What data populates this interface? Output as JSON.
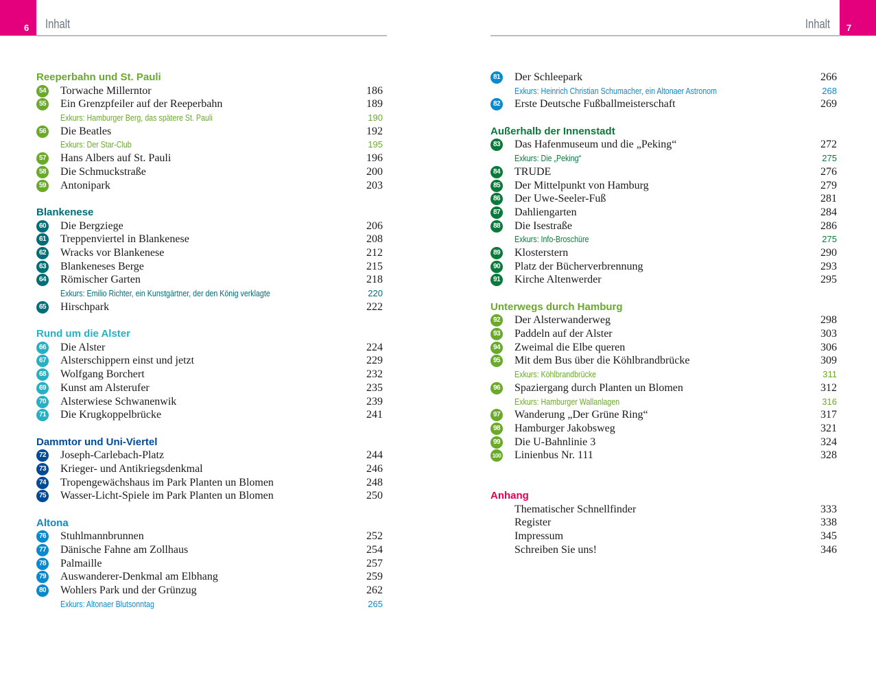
{
  "header": {
    "left_page": "6",
    "right_page": "7",
    "running_title": "Inhalt"
  },
  "colors": {
    "tab": "#e4007c"
  },
  "left": [
    {
      "title": "Reeperbahn und St. Pauli",
      "color": "#6aaa2a",
      "rows": [
        {
          "n": "54",
          "t": "Torwache Millerntor",
          "p": "186"
        },
        {
          "n": "55",
          "t": "Ein Grenzpfeiler auf der Reeperbahn",
          "p": "189"
        },
        {
          "ex": true,
          "t": "Exkurs: Hamburger Berg, das spätere St. Pauli",
          "p": "190"
        },
        {
          "n": "56",
          "t": "Die Beatles",
          "p": "192"
        },
        {
          "ex": true,
          "t": "Exkurs: Der Star-Club",
          "p": "195"
        },
        {
          "n": "57",
          "t": "Hans Albers auf St. Pauli",
          "p": "196"
        },
        {
          "n": "58",
          "t": "Die Schmuckstraße",
          "p": "200"
        },
        {
          "n": "59",
          "t": "Antonipark",
          "p": "203"
        }
      ]
    },
    {
      "title": "Blankenese",
      "color": "#006e77",
      "rows": [
        {
          "n": "60",
          "t": "Die Bergziege",
          "p": "206"
        },
        {
          "n": "61",
          "t": "Treppenviertel in Blankenese",
          "p": "208"
        },
        {
          "n": "62",
          "t": "Wracks vor Blankenese",
          "p": "212"
        },
        {
          "n": "63",
          "t": "Blankeneses Berge",
          "p": "215"
        },
        {
          "n": "64",
          "t": "Römischer Garten",
          "p": "218"
        },
        {
          "ex": true,
          "t": "Exkurs: Emilio Richter, ein Kunstgärtner, der den König verklagte",
          "p": "220"
        },
        {
          "n": "65",
          "t": "Hirschpark",
          "p": "222"
        }
      ]
    },
    {
      "title": "Rund um die Alster",
      "color": "#27b0c4",
      "rows": [
        {
          "n": "66",
          "t": "Die Alster",
          "p": "224"
        },
        {
          "n": "67",
          "t": "Alsterschippern einst und jetzt",
          "p": "229"
        },
        {
          "n": "68",
          "t": "Wolfgang Borchert",
          "p": "232"
        },
        {
          "n": "69",
          "t": "Kunst am Alsterufer",
          "p": "235"
        },
        {
          "n": "70",
          "t": "Alsterwiese Schwanenwik",
          "p": "239"
        },
        {
          "n": "71",
          "t": "Die Krugkoppelbrücke",
          "p": "241"
        }
      ]
    },
    {
      "title": "Dammtor und Uni-Viertel",
      "color": "#004a98",
      "rows": [
        {
          "n": "72",
          "t": "Joseph-Carlebach-Platz",
          "p": "244"
        },
        {
          "n": "73",
          "t": "Krieger- und Antikriegsdenkmal",
          "p": "246"
        },
        {
          "n": "74",
          "t": "Tropengewächshaus im Park Planten un Blomen",
          "p": "248"
        },
        {
          "n": "75",
          "t": "Wasser-Licht-Spiele im Park Planten un Blomen",
          "p": "250"
        }
      ]
    },
    {
      "title": "Altona",
      "color": "#0a89cf",
      "rows": [
        {
          "n": "76",
          "t": "Stuhlmannbrunnen",
          "p": "252"
        },
        {
          "n": "77",
          "t": "Dänische Fahne am Zollhaus",
          "p": "254"
        },
        {
          "n": "78",
          "t": "Palmaille",
          "p": "257"
        },
        {
          "n": "79",
          "t": "Auswanderer-Denkmal am Elbhang",
          "p": "259"
        },
        {
          "n": "80",
          "t": "Wohlers Park und der Grünzug",
          "p": "262"
        },
        {
          "ex": true,
          "t": "Exkurs: Altonaer Blutsonntag",
          "p": "265"
        }
      ]
    }
  ],
  "right": [
    {
      "title": "",
      "color": "#0a89cf",
      "rows": [
        {
          "n": "81",
          "t": "Der Schleepark",
          "p": "266"
        },
        {
          "ex": true,
          "t": "Exkurs: Heinrich Christian Schumacher, ein Altonaer Astronom",
          "p": "268"
        },
        {
          "n": "82",
          "t": "Erste Deutsche Fußballmeisterschaft",
          "p": "269"
        }
      ]
    },
    {
      "title": "Außerhalb der Innenstadt",
      "color": "#0a7a3a",
      "rows": [
        {
          "n": "83",
          "t": "Das Hafenmuseum und die „Peking“",
          "p": "272"
        },
        {
          "ex": true,
          "t": "Exkurs: Die „Peking“",
          "p": "275"
        },
        {
          "n": "84",
          "t": "TRUDE",
          "p": "276"
        },
        {
          "n": "85",
          "t": "Der Mittelpunkt von Hamburg",
          "p": "279"
        },
        {
          "n": "86",
          "t": "Der Uwe-Seeler-Fuß",
          "p": "281"
        },
        {
          "n": "87",
          "t": "Dahliengarten",
          "p": "284"
        },
        {
          "n": "88",
          "t": "Die Isestraße",
          "p": "286"
        },
        {
          "ex": true,
          "t": "Exkurs: Info-Broschüre",
          "p": "275"
        },
        {
          "n": "89",
          "t": "Klosterstern",
          "p": "290"
        },
        {
          "n": "90",
          "t": "Platz der Bücherverbrennung",
          "p": "293"
        },
        {
          "n": "91",
          "t": "Kirche Altenwerder",
          "p": "295"
        }
      ]
    },
    {
      "title": "Unterwegs durch Hamburg",
      "color": "#6aaa2a",
      "rows": [
        {
          "n": "92",
          "t": "Der Alsterwanderweg",
          "p": "298"
        },
        {
          "n": "93",
          "t": "Paddeln auf der Alster",
          "p": "303"
        },
        {
          "n": "94",
          "t": "Zweimal die Elbe queren",
          "p": "306"
        },
        {
          "n": "95",
          "t": "Mit dem Bus über die Köhlbrandbrücke",
          "p": "309"
        },
        {
          "ex": true,
          "t": "Exkurs: Köhlbrandbrücke",
          "p": "311"
        },
        {
          "n": "96",
          "t": "Spaziergang durch Planten un Blomen",
          "p": "312"
        },
        {
          "ex": true,
          "t": "Exkurs: Hamburger Wallanlagen",
          "p": "316"
        },
        {
          "n": "97",
          "t": "Wanderung „Der Grüne Ring“",
          "p": "317"
        },
        {
          "n": "98",
          "t": "Hamburger Jakobsweg",
          "p": "321"
        },
        {
          "n": "99",
          "t": "Die U-Bahnlinie 3",
          "p": "324"
        },
        {
          "n": "100",
          "t": "Linienbus Nr. 111",
          "p": "328"
        }
      ]
    },
    {
      "title": "Anhang",
      "color": "#e5004f",
      "anhang": true,
      "rows": [
        {
          "t": "Thematischer Schnellfinder",
          "p": "333"
        },
        {
          "t": "Register",
          "p": "338"
        },
        {
          "t": "Impressum",
          "p": "345"
        },
        {
          "t": "Schreiben Sie uns!",
          "p": "346"
        }
      ]
    }
  ]
}
